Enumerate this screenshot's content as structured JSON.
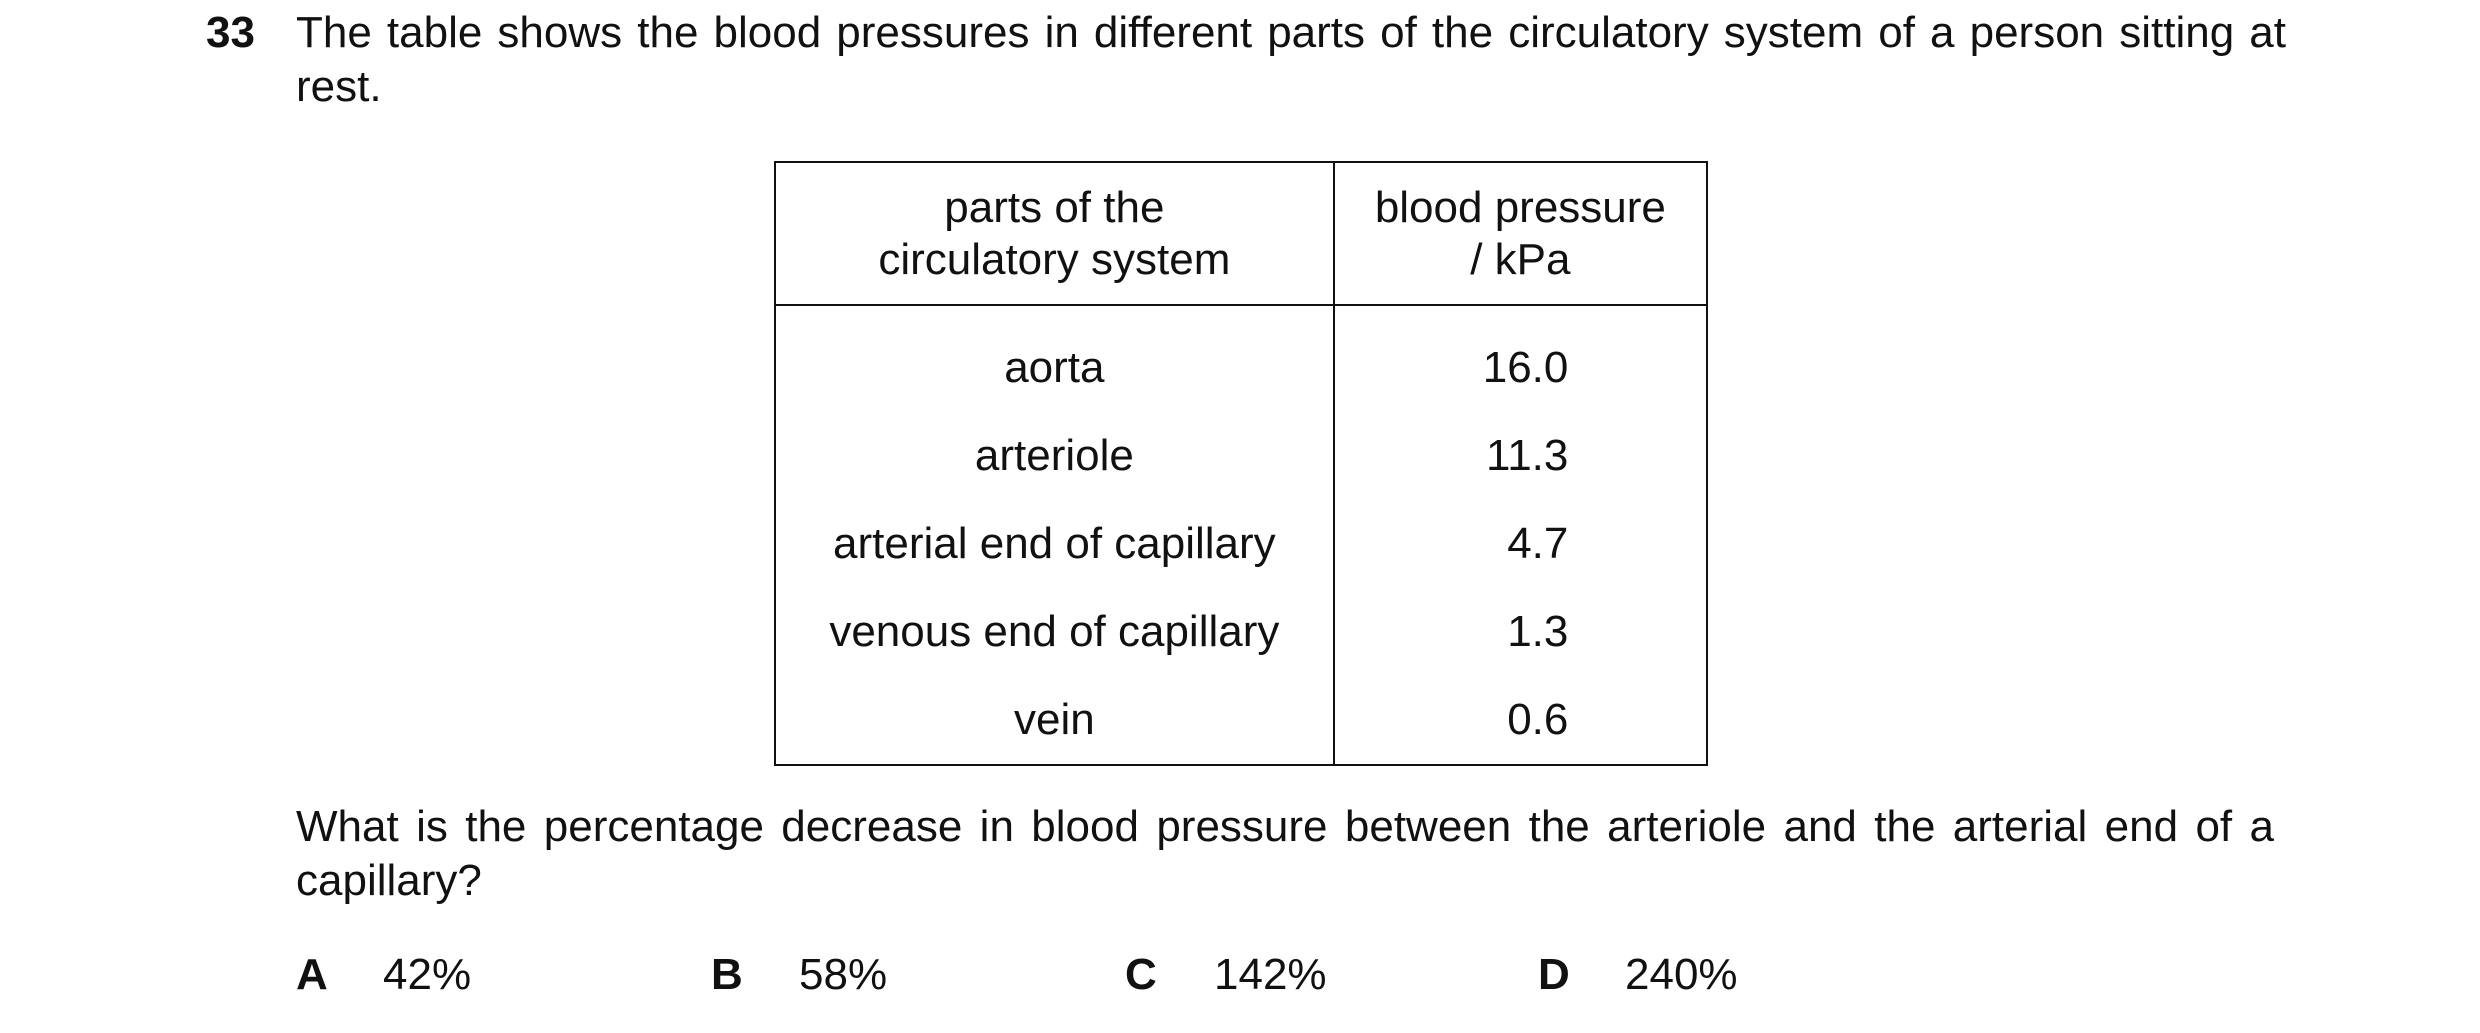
{
  "question": {
    "number": "33",
    "stem": "The table shows the blood pressures in different parts of the circulatory system of a person sitting at rest.",
    "prompt": "What is the percentage decrease in blood pressure between the arteriole and the arterial end of a capillary?"
  },
  "table": {
    "headers": {
      "col1_line1": "parts of the",
      "col1_line2": "circulatory system",
      "col2_line1": "blood pressure",
      "col2_line2": "/ kPa"
    },
    "rows": [
      {
        "part": "aorta",
        "pressure": "16.0"
      },
      {
        "part": "arteriole",
        "pressure": "11.3"
      },
      {
        "part": "arterial end of capillary",
        "pressure": "4.7"
      },
      {
        "part": "venous end of capillary",
        "pressure": "1.3"
      },
      {
        "part": "vein",
        "pressure": "0.6"
      }
    ]
  },
  "options": [
    {
      "letter": "A",
      "value": "42%"
    },
    {
      "letter": "B",
      "value": "58%"
    },
    {
      "letter": "C",
      "value": "142%"
    },
    {
      "letter": "D",
      "value": "240%"
    }
  ]
}
